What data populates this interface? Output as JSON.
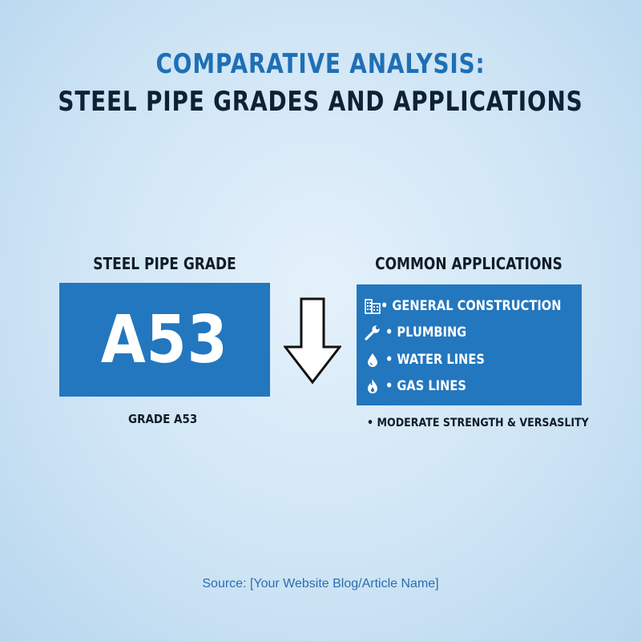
{
  "title": {
    "line1": "COMPARATIVE ANALYSIS:",
    "line2": "STEEL PIPE GRADES AND APPLICATIONS"
  },
  "grade_panel": {
    "heading": "STEEL PIPE GRADE",
    "code": "A53",
    "caption": "GRADE A53"
  },
  "applications_panel": {
    "heading": "COMMON APPLICATIONS",
    "items": [
      {
        "icon": "building-icon",
        "label": "• GENERAL CONSTRUCTION"
      },
      {
        "icon": "wrench-icon",
        "label": "• PLUMBING"
      },
      {
        "icon": "water-drop-icon",
        "label": "• WATER LINES"
      },
      {
        "icon": "flame-icon",
        "label": "• GAS LINES"
      }
    ],
    "note": "• MODERATE STRENGTH & VERSASLITY"
  },
  "arrow_icon": "down-arrow-icon",
  "source": "Source: [Your Website Blog/Article Name]",
  "colors": {
    "accent_blue": "#2377be",
    "title_blue": "#1f6fb5",
    "dark_text": "#0f2135",
    "source_blue": "#2a6db0"
  }
}
